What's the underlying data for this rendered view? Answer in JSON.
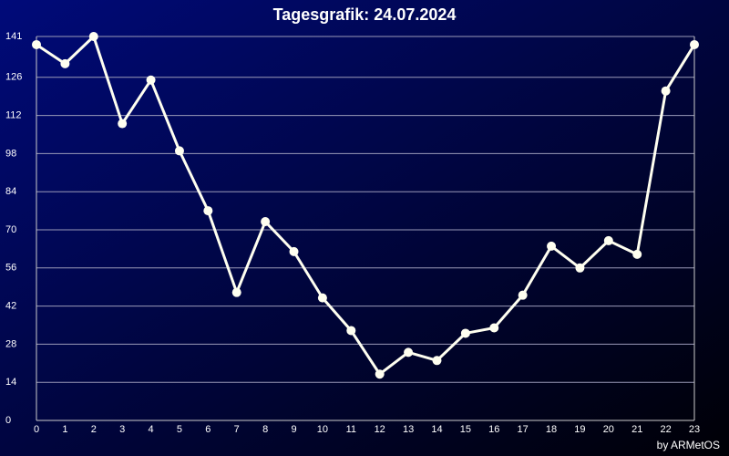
{
  "chart_data": {
    "type": "line",
    "title": "Tagesgrafik: 24.07.2024",
    "credit": "by ARMetOS",
    "x": [
      0,
      1,
      2,
      3,
      4,
      5,
      6,
      7,
      8,
      9,
      10,
      11,
      12,
      13,
      14,
      15,
      16,
      17,
      18,
      19,
      20,
      21,
      22,
      23
    ],
    "series": [
      {
        "color": "#fffff0",
        "values": [
          138,
          131,
          141,
          109,
          125,
          99,
          77,
          47,
          73,
          62,
          45,
          33,
          17,
          25,
          22,
          32,
          34,
          46,
          64,
          56,
          66,
          61,
          121,
          138
        ]
      }
    ],
    "xlim": [
      0,
      23
    ],
    "xticks": [
      0,
      1,
      2,
      3,
      4,
      5,
      6,
      7,
      8,
      9,
      10,
      11,
      12,
      13,
      14,
      15,
      16,
      17,
      18,
      19,
      20,
      21,
      22,
      23
    ],
    "ylim": [
      0,
      141
    ],
    "yticks": [
      0,
      14,
      28,
      42,
      56,
      70,
      84,
      98,
      112,
      126,
      141
    ],
    "grid": true
  }
}
